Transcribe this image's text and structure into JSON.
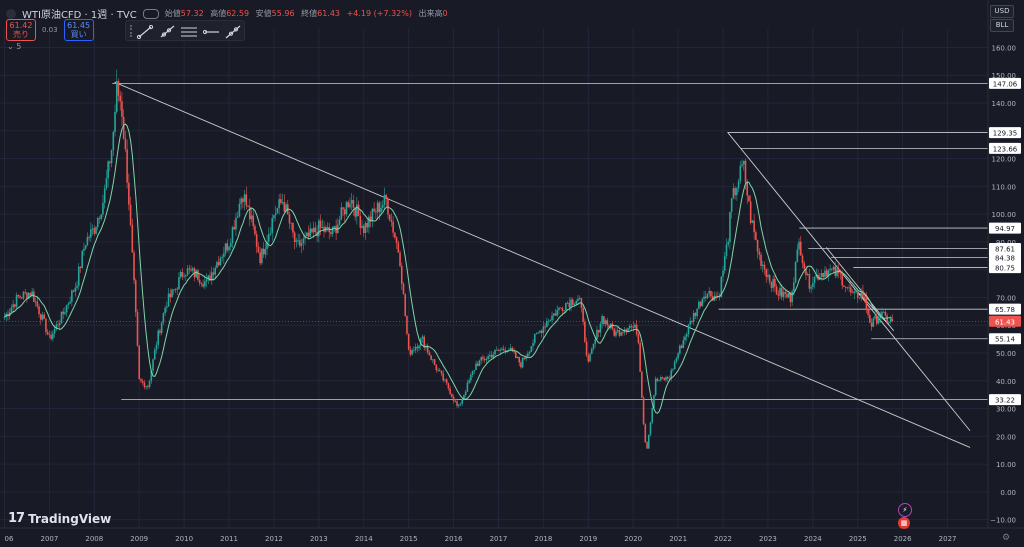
{
  "header": {
    "symbol": "WTI原油CFD · 1週 · TVC",
    "ohlc": [
      {
        "label": "始値",
        "value": "57.32"
      },
      {
        "label": "高値",
        "value": "62.59"
      },
      {
        "label": "安値",
        "value": "55.96"
      },
      {
        "label": "終値",
        "value": "61.43"
      },
      {
        "label": "",
        "value": "+4.19 (+7.32%)"
      },
      {
        "label": "出来高",
        "value": "0"
      }
    ],
    "sell_price": "61.42",
    "sell_label": "売り",
    "spread": "0.03",
    "buy_price": "61.45",
    "buy_label": "買い",
    "indicators_count": "5"
  },
  "currency_button": "USD",
  "unit_button": "BLL",
  "brand": "TradingView",
  "colors": {
    "background": "#181a25",
    "up": "#26a69a",
    "down": "#ef5350",
    "ma": "#7fd6a8",
    "drawing": "#c9ccd3",
    "price_tag": "#ef5350"
  },
  "chart_data": {
    "type": "line",
    "title": "",
    "xlabel": "",
    "ylabel": "",
    "ylim": [
      -13,
      167
    ],
    "xlim": [
      2005.9,
      2027.9
    ],
    "y_ticks": [
      "160.00",
      "150.00",
      "140.00",
      "130.00",
      "120.00",
      "110.00",
      "100.00",
      "90.00",
      "80.00",
      "70.00",
      "60.00",
      "50.00",
      "40.00",
      "30.00",
      "20.00",
      "10.00",
      "0.00",
      "−10.00"
    ],
    "x_ticks": [
      "06",
      "2007",
      "2008",
      "2009",
      "2010",
      "2011",
      "2012",
      "2013",
      "2014",
      "2015",
      "2016",
      "2017",
      "2018",
      "2019",
      "2020",
      "2021",
      "2022",
      "2023",
      "2024",
      "2025",
      "2026",
      "2027"
    ],
    "series": [
      {
        "x": [
          2006.0,
          2006.3,
          2006.6,
          2006.9,
          2007.0,
          2007.3,
          2007.6,
          2007.8,
          2008.0,
          2008.2,
          2008.4,
          2008.5,
          2008.6,
          2008.75,
          2008.9,
          2009.0,
          2009.2,
          2009.4,
          2009.6,
          2009.8,
          2010.0,
          2010.3,
          2010.5,
          2010.7,
          2011.0,
          2011.3,
          2011.5,
          2011.7,
          2012.0,
          2012.2,
          2012.5,
          2012.8,
          2013.0,
          2013.3,
          2013.7,
          2014.0,
          2014.3,
          2014.5,
          2014.8,
          2015.0,
          2015.3,
          2015.6,
          2015.9,
          2016.1,
          2016.5,
          2016.9,
          2017.2,
          2017.5,
          2017.8,
          2018.1,
          2018.5,
          2018.8,
          2019.0,
          2019.3,
          2019.6,
          2019.9,
          2020.1,
          2020.25,
          2020.3,
          2020.5,
          2020.8,
          2021.0,
          2021.3,
          2021.6,
          2021.9,
          2022.1,
          2022.2,
          2022.45,
          2022.6,
          2022.8,
          2023.0,
          2023.2,
          2023.5,
          2023.7,
          2023.9,
          2024.1,
          2024.3,
          2024.6,
          2024.9,
          2025.1,
          2025.3,
          2025.5,
          2025.65,
          2025.8
        ],
        "values": [
          63,
          70,
          72,
          60,
          55,
          64,
          75,
          90,
          95,
          105,
          125,
          145,
          140,
          110,
          70,
          40,
          38,
          55,
          68,
          73,
          80,
          78,
          75,
          82,
          90,
          108,
          97,
          84,
          100,
          105,
          88,
          92,
          95,
          93,
          106,
          95,
          102,
          105,
          85,
          50,
          55,
          45,
          37,
          30,
          46,
          50,
          52,
          46,
          55,
          62,
          68,
          70,
          46,
          63,
          57,
          60,
          58,
          20,
          15,
          40,
          41,
          50,
          62,
          72,
          70,
          90,
          105,
          118,
          100,
          85,
          78,
          72,
          70,
          90,
          75,
          78,
          80,
          78,
          70,
          72,
          60,
          64,
          62,
          61
        ],
        "name": ""
      }
    ],
    "horizontal_levels": [
      "147.06",
      "129.35",
      "123.66",
      "94.97",
      "87.61",
      "84.38",
      "80.75",
      "65.78",
      "61.43",
      "55.14",
      "33.22"
    ],
    "current_price": "61.43",
    "grid": true
  }
}
